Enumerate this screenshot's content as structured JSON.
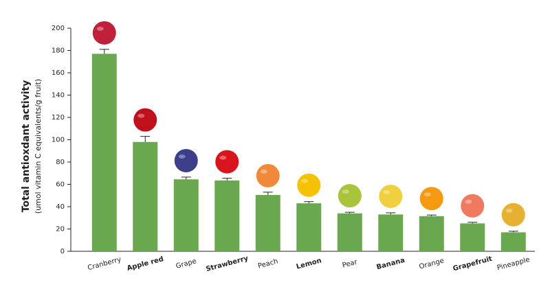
{
  "chart_data": {
    "type": "bar",
    "y_label": "Total antioxdant activity",
    "y_sublabel": "(umol vitamin C equivalents/g fruit)",
    "categories": [
      "Cranberry",
      "Apple red",
      "Grape",
      "Strawberry",
      "Peach",
      "Lemon",
      "Pear",
      "Banana",
      "Orange",
      "Grapefruit",
      "Pineapple"
    ],
    "values": [
      177,
      98,
      64.5,
      63.5,
      50.5,
      43,
      34,
      33,
      31.5,
      25,
      17
    ],
    "errors": [
      4,
      5,
      2,
      2,
      2.5,
      1.5,
      1,
      1.5,
      1,
      1,
      1
    ],
    "color": "#6aa84f",
    "ylim": [
      0,
      200
    ],
    "yticks": [
      0,
      20,
      40,
      60,
      80,
      100,
      120,
      140,
      160,
      180,
      200
    ]
  }
}
